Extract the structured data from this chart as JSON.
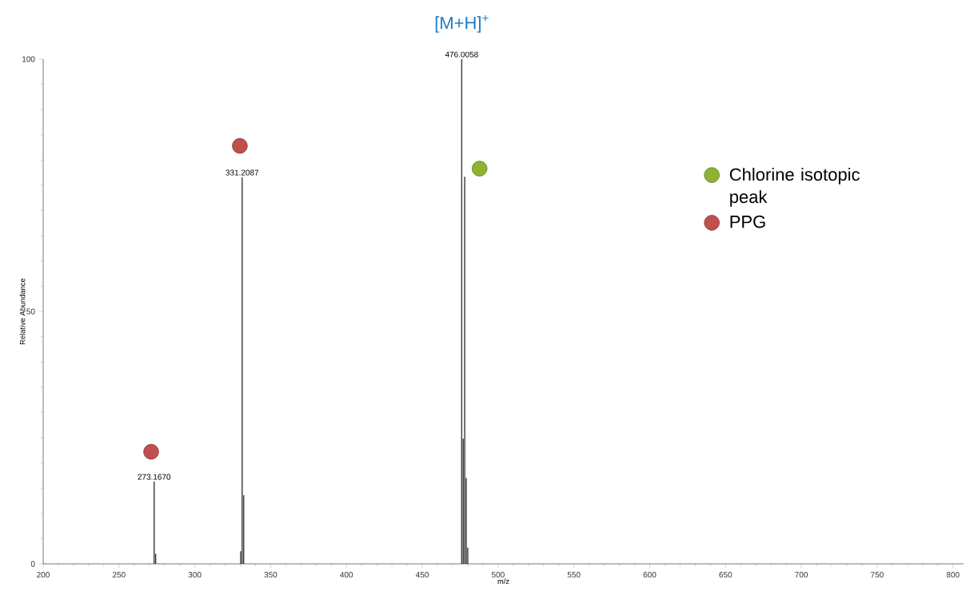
{
  "chart_data": {
    "type": "bar",
    "title": "[M+H]$^{+}$",
    "xlabel": "m/z",
    "ylabel": "Relative Abundance",
    "xlim": [
      200,
      807
    ],
    "ylim": [
      0,
      100
    ],
    "xticks": [
      200,
      250,
      300,
      350,
      400,
      450,
      500,
      550,
      600,
      650,
      700,
      750,
      800
    ],
    "yticks": [
      0,
      50,
      100
    ],
    "grid": false,
    "legend": "top right",
    "series": [
      {
        "type": "bar",
        "color": "#404040",
        "x": [
          273.17,
          274.17,
          330.2,
          331.21,
          332.21,
          476.01,
          477.01,
          478.0,
          479.0,
          480.0
        ],
        "values": [
          16.3,
          2,
          2.5,
          76.6,
          13.6,
          100,
          24.8,
          76.7,
          17,
          3.2
        ]
      },
      {
        "type": "scatter",
        "name": "Chlorine isotopic peak",
        "color": "#8db331",
        "marker": "circle",
        "x": [
          487.8
        ],
        "values": [
          78.3
        ]
      },
      {
        "type": "scatter",
        "name": "PPG",
        "color": "#c0504d",
        "marker": "circle",
        "x": [
          271.2,
          329.7
        ],
        "values": [
          22.2,
          82.8
        ]
      }
    ],
    "annotations": [
      {
        "text": "273.1670",
        "x": 273.17,
        "y": 16.3
      },
      {
        "text": "331.2087",
        "x": 331.21,
        "y": 76.6
      },
      {
        "text": "476.0058",
        "x": 476.01,
        "y": 100
      }
    ]
  }
}
